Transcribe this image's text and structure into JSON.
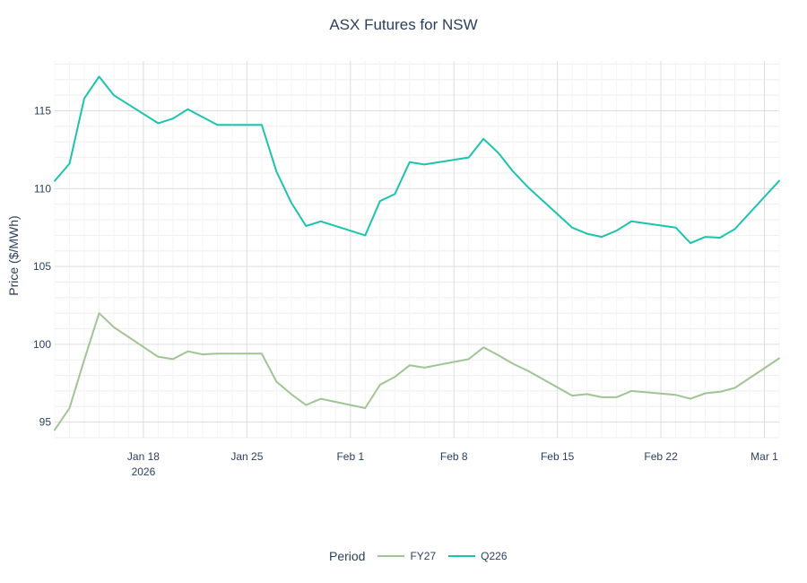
{
  "chart_data": {
    "type": "line",
    "title": "ASX Futures for NSW",
    "xlabel": "",
    "ylabel": "Price ($/MWh)",
    "legend_title": "Period",
    "legend_position": "bottom-center",
    "grid": true,
    "xlim": [
      "2026-01-12",
      "2026-03-02"
    ],
    "ylim": [
      94,
      118.2
    ],
    "y_ticks": [
      95,
      100,
      105,
      110,
      115
    ],
    "x_ticks": [
      {
        "date": "2026-01-18",
        "label": "Jan 18",
        "sublabel": "2026"
      },
      {
        "date": "2026-01-25",
        "label": "Jan 25",
        "sublabel": ""
      },
      {
        "date": "2026-02-01",
        "label": "Feb 1",
        "sublabel": ""
      },
      {
        "date": "2026-02-08",
        "label": "Feb 8",
        "sublabel": ""
      },
      {
        "date": "2026-02-15",
        "label": "Feb 15",
        "sublabel": ""
      },
      {
        "date": "2026-02-22",
        "label": "Feb 22",
        "sublabel": ""
      },
      {
        "date": "2026-03-01",
        "label": "Mar 1",
        "sublabel": ""
      }
    ],
    "series": [
      {
        "name": "FY27",
        "color": "#a0c495",
        "x": [
          "2026-01-12",
          "2026-01-13",
          "2026-01-14",
          "2026-01-15",
          "2026-01-16",
          "2026-01-19",
          "2026-01-20",
          "2026-01-21",
          "2026-01-22",
          "2026-01-23",
          "2026-01-26",
          "2026-01-27",
          "2026-01-28",
          "2026-01-29",
          "2026-01-30",
          "2026-02-02",
          "2026-02-03",
          "2026-02-04",
          "2026-02-05",
          "2026-02-06",
          "2026-02-09",
          "2026-02-10",
          "2026-02-11",
          "2026-02-12",
          "2026-02-13",
          "2026-02-16",
          "2026-02-17",
          "2026-02-18",
          "2026-02-19",
          "2026-02-20",
          "2026-02-23",
          "2026-02-24",
          "2026-02-25",
          "2026-02-26",
          "2026-02-27",
          "2026-03-02"
        ],
        "values": [
          94.5,
          95.9,
          99.0,
          102.0,
          101.1,
          99.2,
          99.05,
          99.55,
          99.35,
          99.4,
          99.4,
          97.6,
          96.8,
          96.1,
          96.5,
          95.9,
          97.4,
          97.9,
          98.65,
          98.5,
          99.05,
          99.8,
          99.3,
          98.75,
          98.3,
          96.7,
          96.8,
          96.6,
          96.6,
          97.0,
          96.75,
          96.5,
          96.85,
          96.95,
          97.2,
          99.1
        ]
      },
      {
        "name": "Q226",
        "color": "#1cc4ad",
        "x": [
          "2026-01-12",
          "2026-01-13",
          "2026-01-14",
          "2026-01-15",
          "2026-01-16",
          "2026-01-19",
          "2026-01-20",
          "2026-01-21",
          "2026-01-22",
          "2026-01-23",
          "2026-01-26",
          "2026-01-27",
          "2026-01-28",
          "2026-01-29",
          "2026-01-30",
          "2026-02-02",
          "2026-02-03",
          "2026-02-04",
          "2026-02-05",
          "2026-02-06",
          "2026-02-09",
          "2026-02-10",
          "2026-02-11",
          "2026-02-12",
          "2026-02-13",
          "2026-02-16",
          "2026-02-17",
          "2026-02-18",
          "2026-02-19",
          "2026-02-20",
          "2026-02-23",
          "2026-02-24",
          "2026-02-25",
          "2026-02-26",
          "2026-02-27",
          "2026-03-02"
        ],
        "values": [
          110.5,
          111.6,
          115.8,
          117.2,
          116.0,
          114.2,
          114.5,
          115.1,
          114.6,
          114.1,
          114.1,
          111.1,
          109.1,
          107.6,
          107.9,
          107.0,
          109.2,
          109.65,
          111.7,
          111.55,
          112.0,
          113.2,
          112.3,
          111.1,
          110.1,
          107.5,
          107.1,
          106.9,
          107.3,
          107.9,
          107.5,
          106.5,
          106.9,
          106.85,
          107.4,
          110.5
        ]
      }
    ]
  }
}
